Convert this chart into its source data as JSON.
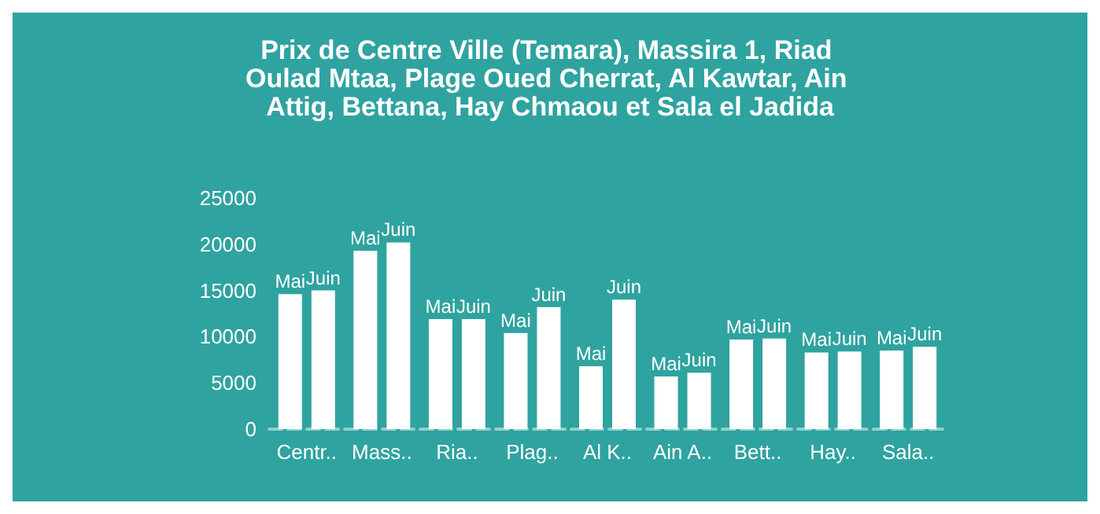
{
  "chart_data": {
    "type": "bar",
    "title": "Prix de Centre Ville (Temara), Massira 1, Riad Oulad Mtaa, Plage Oued Cherrat, Al Kawtar, Ain Attig, Bettana, Hay Chmaou et Sala el Jadida",
    "categories": [
      "Centr..",
      "Mass..",
      "Ria..",
      "Plag..",
      "Al K..",
      "Ain A..",
      "Bett..",
      "Hay..",
      "Sala.."
    ],
    "series": [
      {
        "name": "Mai",
        "color": "#ffffff",
        "values": [
          14600,
          19300,
          11900,
          10400,
          6800,
          5700,
          9700,
          8300,
          8500
        ]
      },
      {
        "name": "Juin",
        "color": "#ffffff",
        "values": [
          15000,
          20200,
          11900,
          13200,
          14000,
          6100,
          9800,
          8400,
          8900
        ]
      }
    ],
    "ylim": [
      0,
      25000
    ],
    "yticks": [
      0,
      5000,
      10000,
      15000,
      20000,
      25000
    ],
    "grid": false,
    "legend": false
  }
}
